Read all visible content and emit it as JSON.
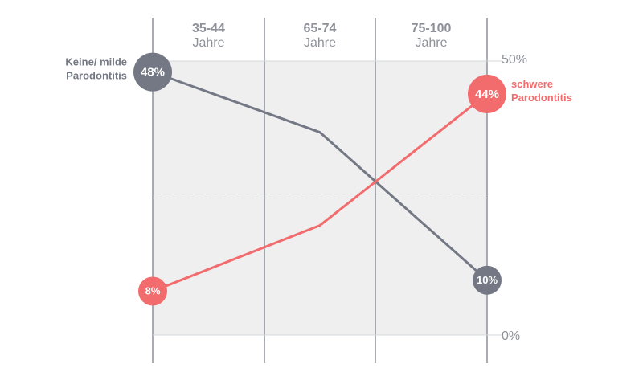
{
  "colors": {
    "gray_series": "#737884",
    "red_series": "#f26b6d",
    "plot_bg": "#efeff0",
    "grid": "#8e9199",
    "text": "#8e9199"
  },
  "chart_data": {
    "type": "line",
    "categories": [
      {
        "top": "",
        "bottom": ""
      },
      {
        "top": "35-44",
        "bottom": "Jahre"
      },
      {
        "top": "65-74",
        "bottom": "Jahre"
      },
      {
        "top": "75-100",
        "bottom": "Jahre"
      }
    ],
    "x": [
      0,
      1,
      2,
      3
    ],
    "series": [
      {
        "name": "Keine/ milde Parodontitis",
        "name_lines": [
          "Keine/ milde",
          "Parodontitis"
        ],
        "color": "#737884",
        "values": [
          48,
          37,
          10
        ],
        "x": [
          0,
          1.5,
          3
        ],
        "start_label": "48%",
        "end_label": "10%"
      },
      {
        "name": "schwere Parodontitis",
        "name_lines": [
          "schwere",
          "Parodontitis"
        ],
        "color": "#f26b6d",
        "values": [
          8,
          20,
          44
        ],
        "x": [
          0,
          1.5,
          3
        ],
        "start_label": "8%",
        "end_label": "44%"
      }
    ],
    "y_ticks": [
      "0%",
      "50%"
    ],
    "ylim": [
      0,
      50
    ],
    "grid": true,
    "midline_dashed_at": 25
  }
}
